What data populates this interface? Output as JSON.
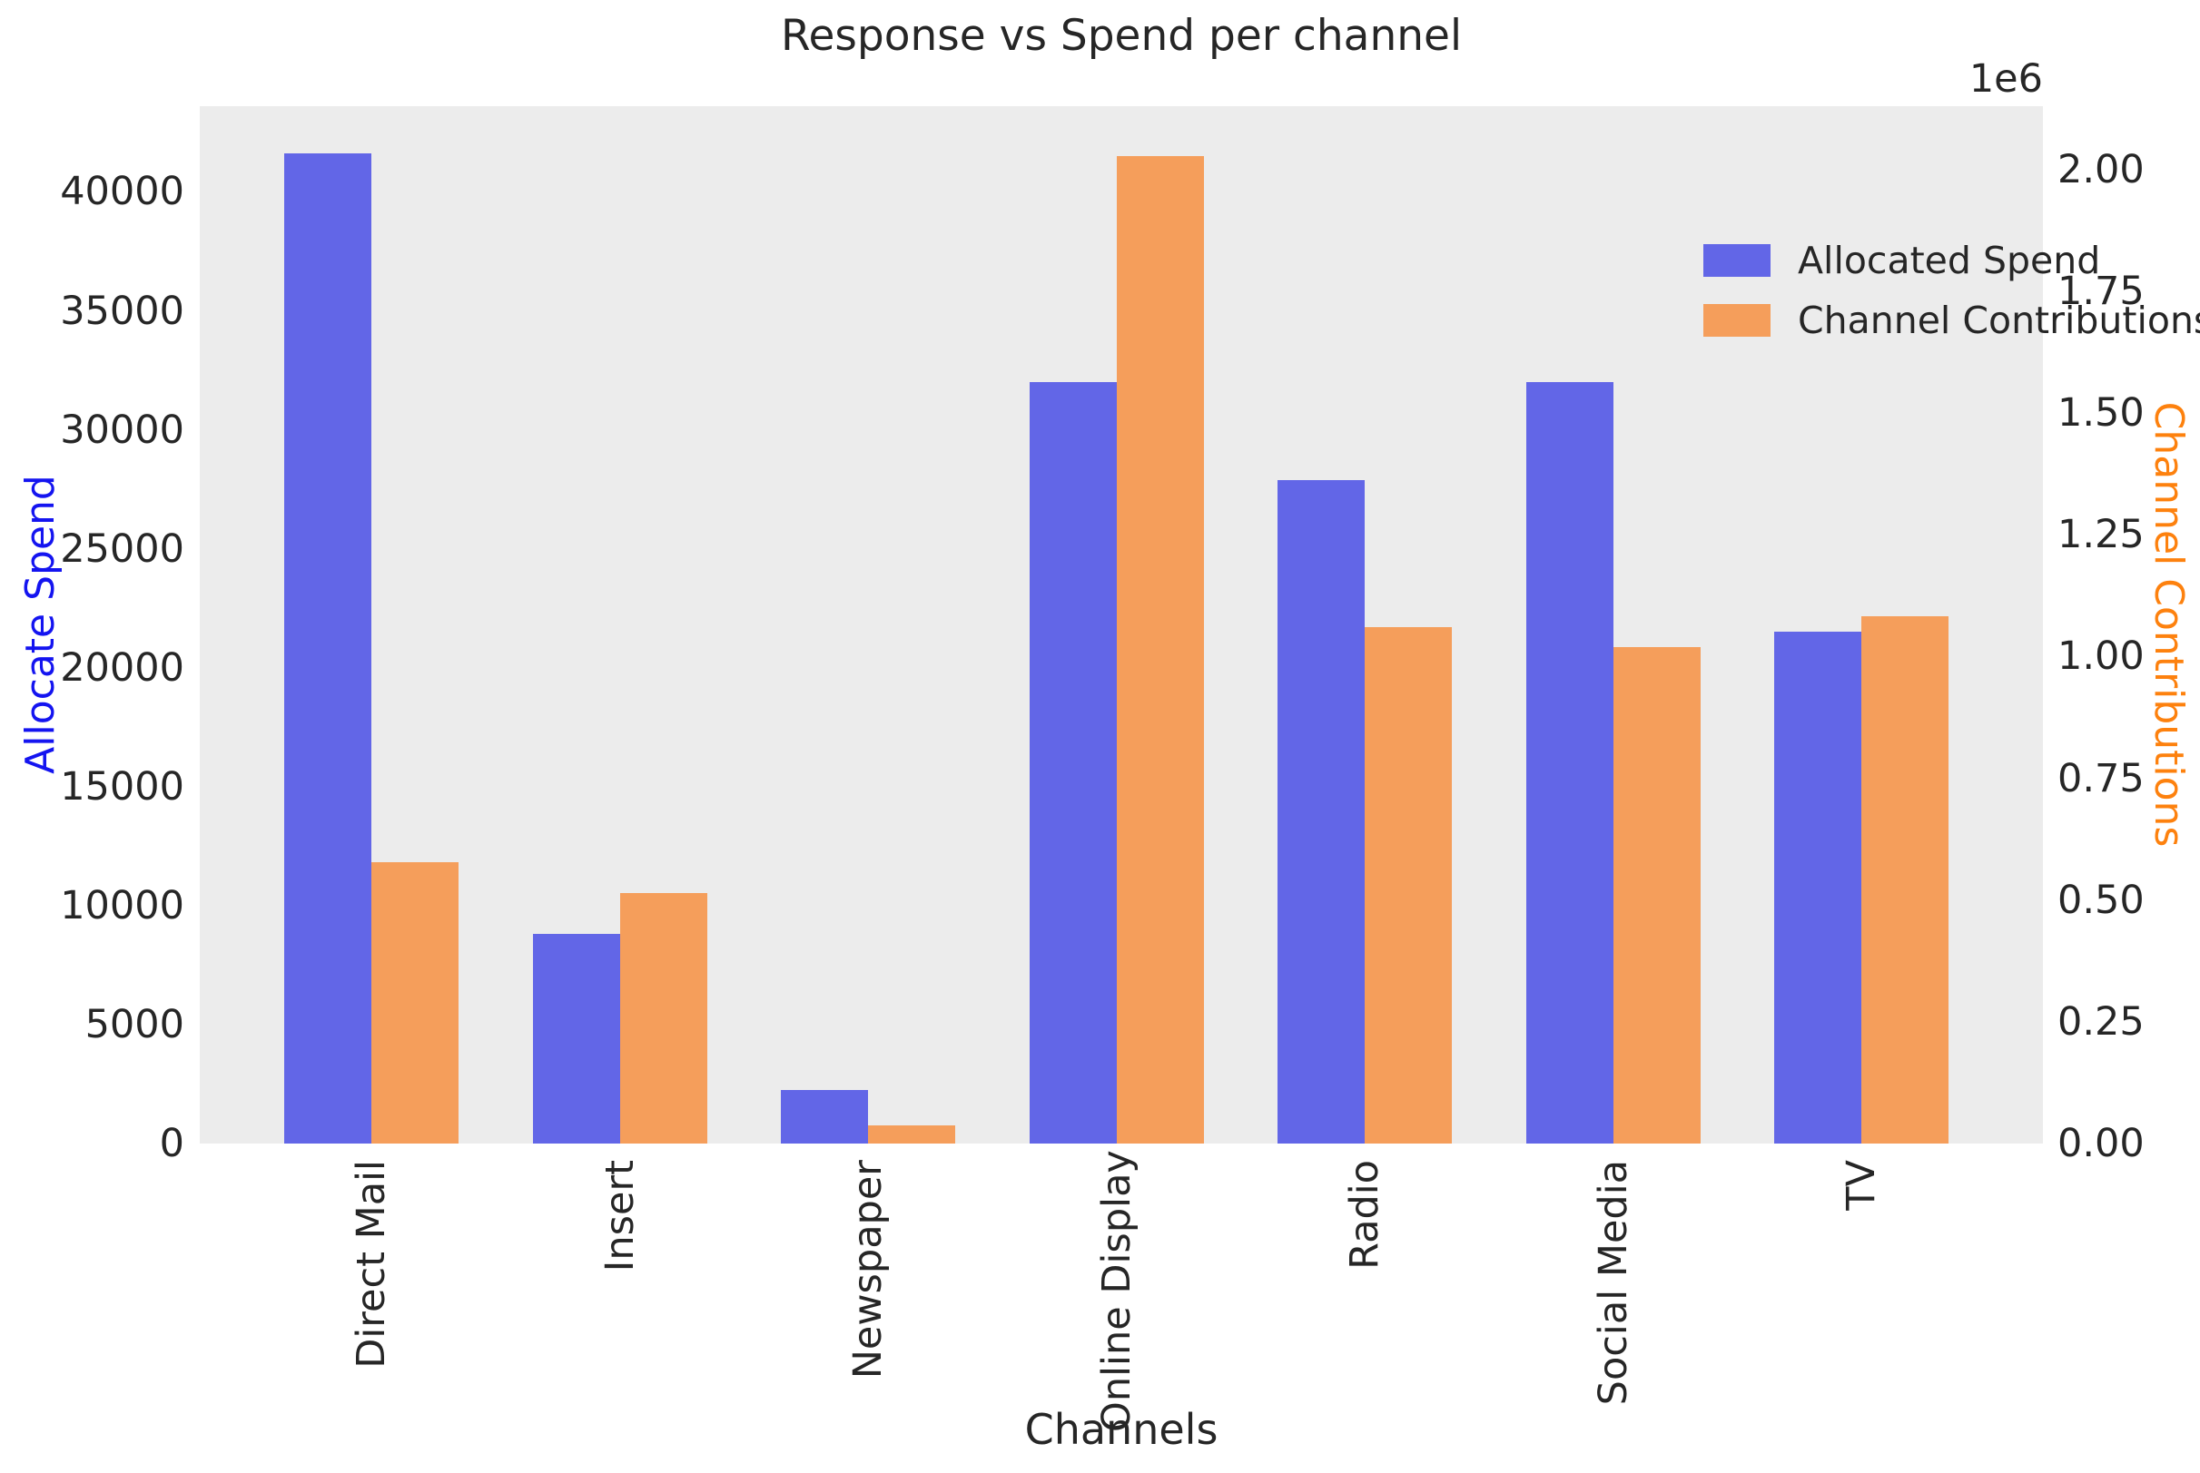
{
  "chart_data": {
    "type": "bar",
    "title": "Response vs Spend per channel",
    "xlabel": "Channels",
    "ylabel_left": "Allocate Spend",
    "ylabel_right": "Channel Contributions",
    "right_offset_text": "1e6",
    "categories": [
      "Direct Mail",
      "Insert",
      "Newspaper",
      "Online Display",
      "Radio",
      "Social Media",
      "TV"
    ],
    "series": [
      {
        "name": "Allocated Spend",
        "axis": "left",
        "values": [
          41600,
          8800,
          2250,
          32000,
          27900,
          32000,
          21500
        ]
      },
      {
        "name": "Channel Contributions",
        "axis": "right",
        "values": [
          577000,
          514000,
          37000,
          2028000,
          1061000,
          1019000,
          1082000
        ]
      }
    ],
    "left_axis": {
      "ticks": [
        0,
        5000,
        10000,
        15000,
        20000,
        25000,
        30000,
        35000,
        40000
      ],
      "max": 43600
    },
    "right_axis": {
      "tick_labels": [
        "0.00",
        "0.25",
        "0.50",
        "0.75",
        "1.00",
        "1.25",
        "1.50",
        "1.75",
        "2.00"
      ],
      "tick_values": [
        0,
        250000,
        500000,
        750000,
        1000000,
        1250000,
        1500000,
        1750000,
        2000000
      ],
      "max": 2130000
    },
    "legend": {
      "entries": [
        "Allocated Spend",
        "Channel Contributions"
      ],
      "position": "upper right"
    },
    "grid": false
  },
  "colors": {
    "spend_bar": "#6266e7",
    "contribution_bar": "#f59e5b",
    "left_label": "#1414f0",
    "right_label": "#fd810e",
    "plot_background": "#ececec",
    "text": "#262626"
  }
}
